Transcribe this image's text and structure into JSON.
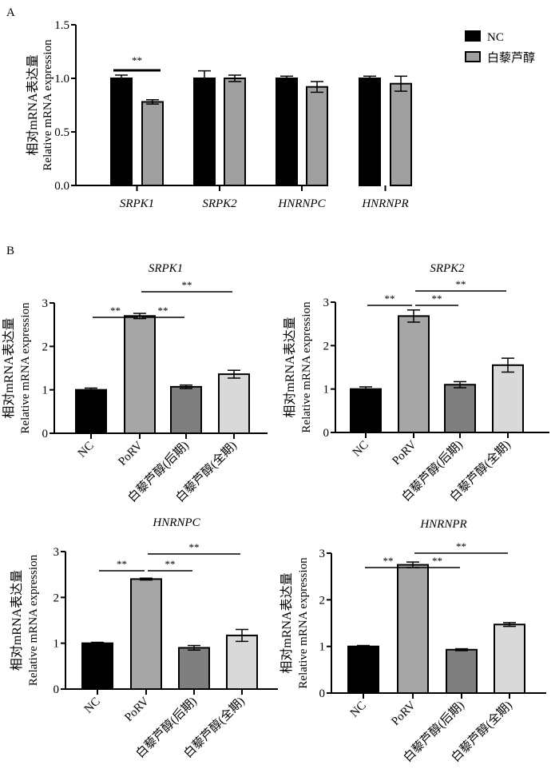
{
  "chart_data": [
    {
      "panel_label": "A",
      "type": "bar",
      "title": "",
      "ylabel_cn": "相对mRNA表达量",
      "ylabel_en": "Relative mRNA expression",
      "ylim": [
        0,
        1.5
      ],
      "yticks": [
        "0.0",
        "0.5",
        "1.0",
        "1.5"
      ],
      "categories": [
        "SRPK1",
        "SRPK2",
        "HNRNPC",
        "HNRNPR"
      ],
      "series": [
        {
          "name": "NC",
          "color": "#000000",
          "values": [
            1.0,
            1.0,
            1.0,
            1.0
          ],
          "errors": [
            0.03,
            0.07,
            0.02,
            0.02
          ]
        },
        {
          "name": "白藜芦醇",
          "color": "#a0a0a0",
          "values": [
            0.78,
            1.0,
            0.92,
            0.95
          ],
          "errors": [
            0.02,
            0.03,
            0.05,
            0.07
          ]
        }
      ],
      "significance": [
        {
          "category": 0,
          "label": "**"
        }
      ],
      "legend": "top-right"
    },
    {
      "panel_label": "B",
      "type": "bar",
      "title": "SRPK1",
      "ylabel_cn": "相对mRNA表达量",
      "ylabel_en": "Relative mRNA expression",
      "ylim": [
        0,
        3
      ],
      "yticks": [
        "0",
        "1",
        "2",
        "3"
      ],
      "categories": [
        "NC",
        "PoRV",
        "白藜芦醇(后期)",
        "白藜芦醇(全期)"
      ],
      "colors": [
        "#000000",
        "#a6a6a6",
        "#7f7f7f",
        "#d9d9d9"
      ],
      "values": [
        1.0,
        2.7,
        1.07,
        1.36
      ],
      "errors": [
        0.04,
        0.06,
        0.04,
        0.09
      ],
      "significance": [
        {
          "from": 0,
          "to": 1,
          "label": "**"
        },
        {
          "from": 1,
          "to": 2,
          "label": "**"
        },
        {
          "from": 1,
          "to": 3,
          "label": "**"
        }
      ]
    },
    {
      "panel_label": "",
      "type": "bar",
      "title": "SRPK2",
      "ylabel_cn": "相对mRNA表达量",
      "ylabel_en": "Relative mRNA expression",
      "ylim": [
        0,
        3
      ],
      "yticks": [
        "0",
        "1",
        "2",
        "3"
      ],
      "categories": [
        "NC",
        "PoRV",
        "白藜芦醇(后期)",
        "白藜芦醇(全期)"
      ],
      "colors": [
        "#000000",
        "#a6a6a6",
        "#7f7f7f",
        "#d9d9d9"
      ],
      "values": [
        1.0,
        2.68,
        1.1,
        1.55
      ],
      "errors": [
        0.05,
        0.14,
        0.07,
        0.16
      ],
      "significance": [
        {
          "from": 0,
          "to": 1,
          "label": "**"
        },
        {
          "from": 1,
          "to": 2,
          "label": "**"
        },
        {
          "from": 1,
          "to": 3,
          "label": "**"
        }
      ]
    },
    {
      "panel_label": "",
      "type": "bar",
      "title": "HNRNPC",
      "ylabel_cn": "相对mRNA表达量",
      "ylabel_en": "Relative mRNA expression",
      "ylim": [
        0,
        3
      ],
      "yticks": [
        "0",
        "1",
        "2",
        "3"
      ],
      "categories": [
        "NC",
        "PoRV",
        "白藜芦醇(后期)",
        "白藜芦醇(全期)"
      ],
      "colors": [
        "#000000",
        "#a6a6a6",
        "#7f7f7f",
        "#d9d9d9"
      ],
      "values": [
        1.0,
        2.4,
        0.9,
        1.17
      ],
      "errors": [
        0.02,
        0.02,
        0.05,
        0.13
      ],
      "significance": [
        {
          "from": 0,
          "to": 1,
          "label": "**"
        },
        {
          "from": 1,
          "to": 2,
          "label": "**"
        },
        {
          "from": 1,
          "to": 3,
          "label": "**"
        }
      ]
    },
    {
      "panel_label": "",
      "type": "bar",
      "title": "HNRNPR",
      "ylabel_cn": "相对mRNA表达量",
      "ylabel_en": "Relative mRNA expression",
      "ylim": [
        0,
        3
      ],
      "yticks": [
        "0",
        "1",
        "2",
        "3"
      ],
      "categories": [
        "NC",
        "PoRV",
        "白藜芦醇(后期)",
        "白藜芦醇(全期)"
      ],
      "colors": [
        "#000000",
        "#a6a6a6",
        "#7f7f7f",
        "#d9d9d9"
      ],
      "values": [
        1.0,
        2.75,
        0.93,
        1.47
      ],
      "errors": [
        0.02,
        0.06,
        0.02,
        0.04
      ],
      "significance": [
        {
          "from": 0,
          "to": 1,
          "label": "**"
        },
        {
          "from": 1,
          "to": 2,
          "label": "**"
        },
        {
          "from": 1,
          "to": 3,
          "label": "**"
        }
      ]
    }
  ]
}
